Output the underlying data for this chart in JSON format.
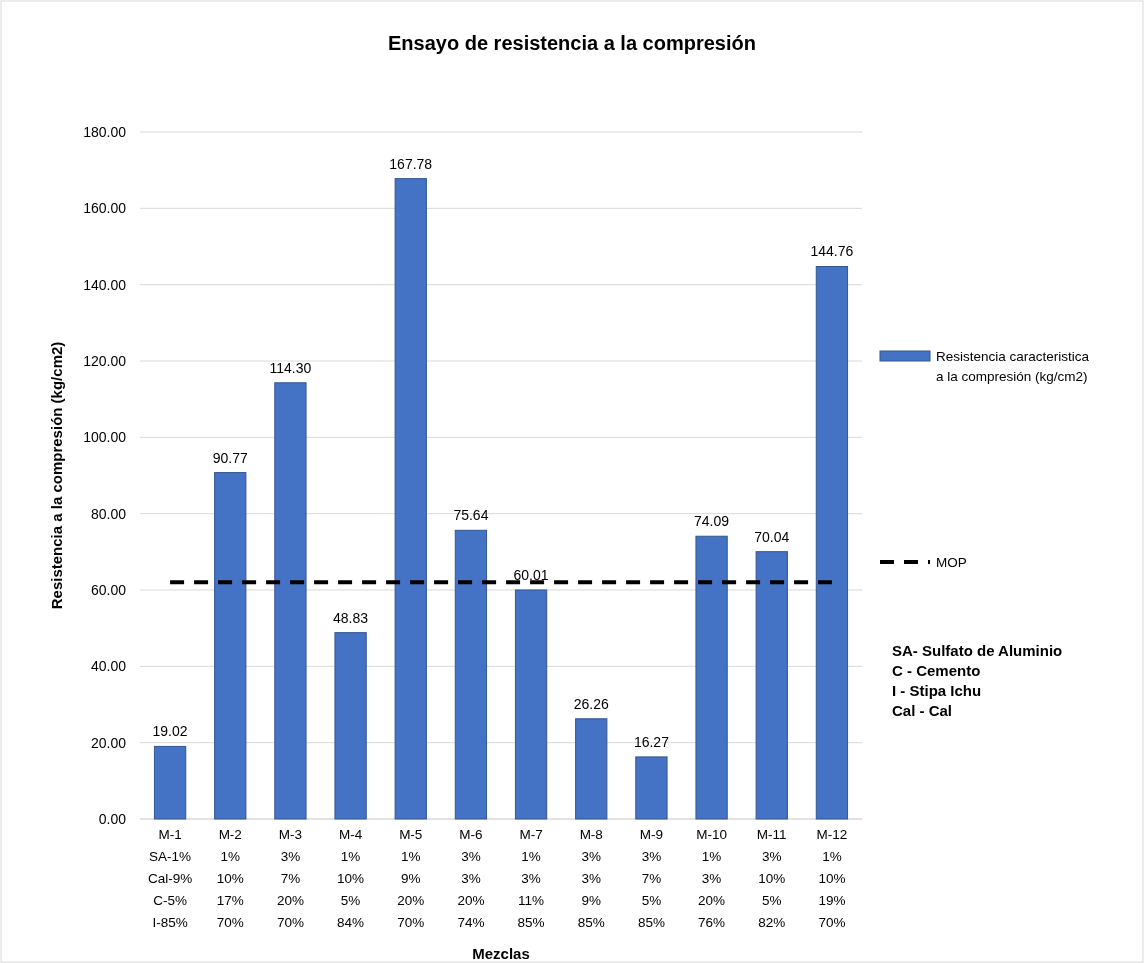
{
  "chart_data": {
    "type": "bar",
    "title": "Ensayo de resistencia a la compresión",
    "xlabel": "Mezclas",
    "ylabel": "Resistencia  a la compresión (kg/cm2)",
    "categories": [
      "M-1\nSA-1%\nCal-9%\nC-5%\nI-85%",
      "M-2\n1%\n10%\n17%\n70%",
      "M-3\n3%\n7%\n20%\n70%",
      "M-4\n1%\n10%\n5%\n84%",
      "M-5\n1%\n9%\n20%\n70%",
      "M-6\n3%\n3%\n20%\n74%",
      "M-7\n1%\n3%\n11%\n85%",
      "M-8\n3%\n3%\n9%\n85%",
      "M-9\n3%\n7%\n5%\n85%",
      "M-10\n1%\n3%\n20%\n76%",
      "M-11\n3%\n10%\n5%\n82%",
      "M-12\n1%\n10%\n19%\n70%"
    ],
    "series": [
      {
        "name": "Resistencia caracteristica a la compresión (kg/cm2)",
        "color": "#4472c4",
        "values": [
          19.02,
          90.77,
          114.3,
          48.83,
          167.78,
          75.64,
          60.01,
          26.26,
          16.27,
          74.09,
          70.04,
          144.76
        ],
        "value_labels": [
          "19.02",
          "90.77",
          "114.30",
          "48.83",
          "167.78",
          "75.64",
          "60.01",
          "26.26",
          "16.27",
          "74.09",
          "70.04",
          "144.76"
        ]
      },
      {
        "name": "MOP",
        "type": "line",
        "color": "#000000",
        "line_style": "dashed",
        "marker": "none",
        "values": [
          62,
          62,
          62,
          62,
          62,
          62,
          62,
          62,
          62,
          62,
          62,
          62
        ]
      }
    ],
    "ylim": [
      0,
      180
    ],
    "yticks": [
      {
        "value": 0,
        "label": "0.00"
      },
      {
        "value": 20,
        "label": "20.00"
      },
      {
        "value": 40,
        "label": "40.00"
      },
      {
        "value": 60,
        "label": "60.00"
      },
      {
        "value": 80,
        "label": "80.00"
      },
      {
        "value": 100,
        "label": "100.00"
      },
      {
        "value": 120,
        "label": "120.00"
      },
      {
        "value": 140,
        "label": "140.00"
      },
      {
        "value": 160,
        "label": "160.00"
      },
      {
        "value": 180,
        "label": "180.00"
      }
    ],
    "grid": "y",
    "legend": "right",
    "annotations": [
      "SA- Sulfato de Aluminio",
      "C - Cemento",
      "I - Stipa Ichu",
      "Cal - Cal"
    ]
  }
}
